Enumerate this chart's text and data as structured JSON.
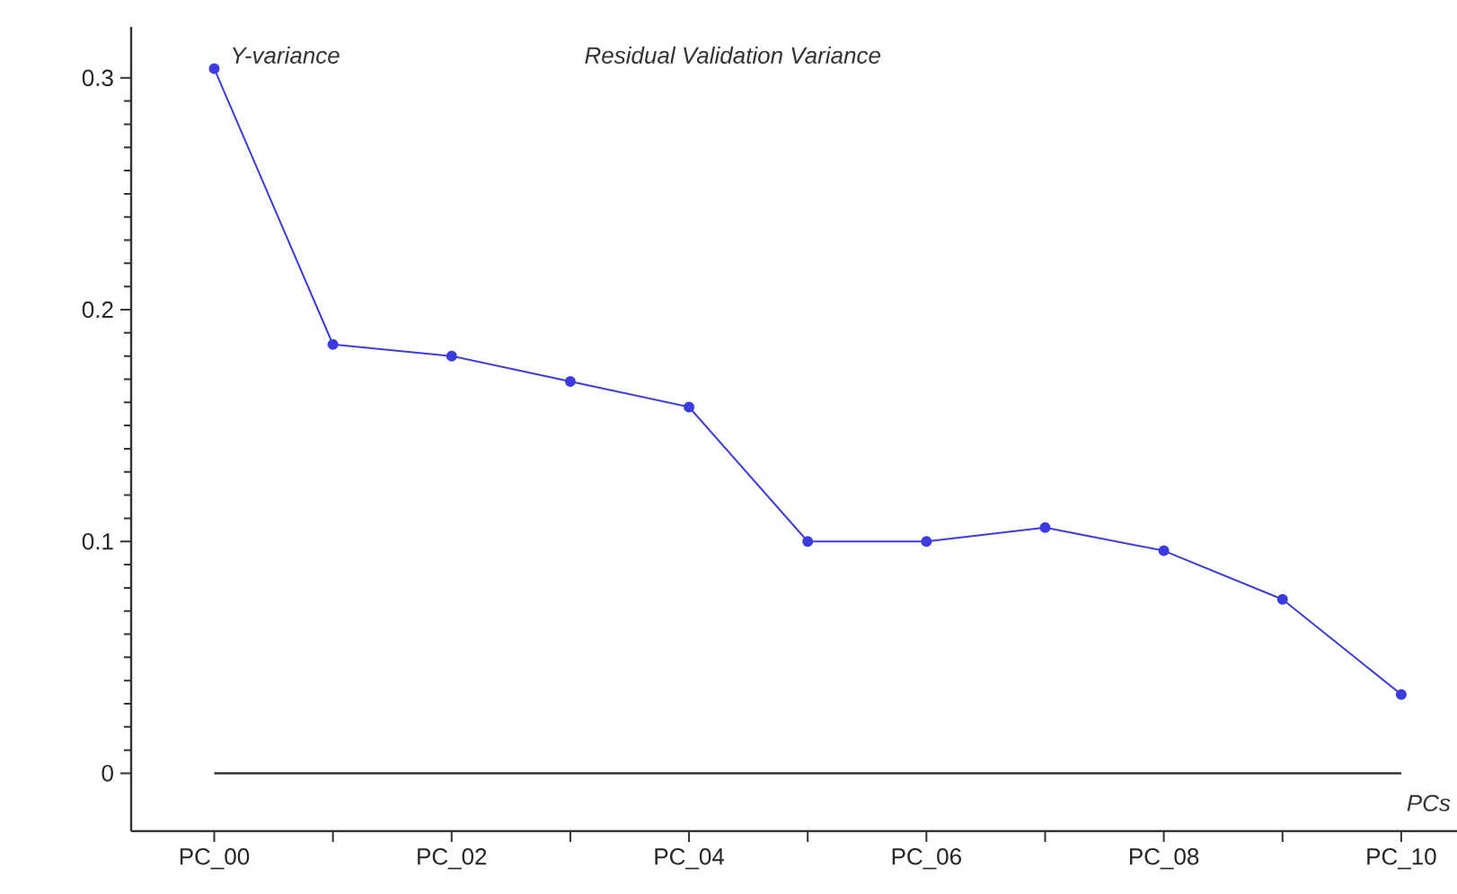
{
  "chart_data": {
    "type": "line",
    "title": "Residual Validation Variance",
    "xlabel": "PCs",
    "ylabel": "Y-variance",
    "categories": [
      "PC_00",
      null,
      "PC_02",
      null,
      "PC_04",
      null,
      "PC_06",
      null,
      "PC_08",
      null,
      "PC_10"
    ],
    "series": [
      {
        "color": "#3b3be0",
        "values": [
          0.304,
          0.185,
          0.18,
          0.169,
          0.158,
          0.1,
          0.1,
          0.106,
          0.096,
          0.075,
          0.034
        ]
      }
    ],
    "ylim": [
      -0.025,
      0.322
    ],
    "yticks": [
      0,
      0.1,
      0.2,
      0.3
    ],
    "ref_lines": [
      {
        "axis": "y",
        "value": 0,
        "color": "#333333"
      }
    ],
    "marker": "circle"
  }
}
